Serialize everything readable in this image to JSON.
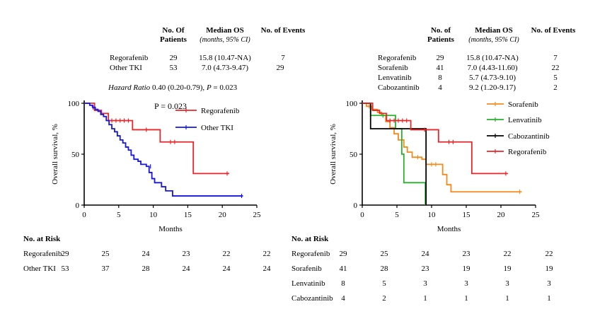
{
  "left": {
    "table": {
      "headers": {
        "patients": "No. Of",
        "patients2": "Patients",
        "median": "Median OS",
        "median_sub": "(months, 95% CI)",
        "events": "No. of Events"
      },
      "rows": [
        {
          "name": "Regorafenib",
          "n": "29",
          "median": "15.8 (10.47-NA)",
          "events": "7"
        },
        {
          "name": "Other TKI",
          "n": "53",
          "median": "7.0 (4.73-9.47)",
          "events": "29"
        }
      ]
    },
    "hr_italic": "Hazard Ratio",
    "hr_value": "0.40 (0.20-0.79),",
    "hr_p_italic": "P",
    "hr_p_value": "= 0.023",
    "p_text": "P = 0.023",
    "risk": {
      "title": "No. at Risk",
      "rows": [
        {
          "name": "Regorafenib",
          "values": [
            "29",
            "25",
            "24",
            "23",
            "22",
            "22"
          ]
        },
        {
          "name": "Other TKI",
          "values": [
            "53",
            "37",
            "28",
            "24",
            "24",
            "24"
          ]
        }
      ]
    }
  },
  "right": {
    "table": {
      "headers": {
        "patients": "No. of",
        "patients2": "Patients",
        "median": "Median OS",
        "median_sub": "(months, 95% CI)",
        "events": "No. of Events"
      },
      "rows": [
        {
          "name": "Regorafenib",
          "n": "29",
          "median": "15.8 (10.47-NA)",
          "events": "7"
        },
        {
          "name": "Sorafenib",
          "n": "41",
          "median": "7.0 (4.43-11.60)",
          "events": "22"
        },
        {
          "name": "Lenvatinib",
          "n": "8",
          "median": "5.7 (4.73-9.10)",
          "events": "5"
        },
        {
          "name": "Cabozantinib",
          "n": "4",
          "median": "9.2 (1.20-9.17)",
          "events": "2"
        }
      ]
    },
    "risk": {
      "title": "No. at Risk",
      "rows": [
        {
          "name": "Regorafenib",
          "values": [
            "29",
            "25",
            "24",
            "23",
            "22",
            "22"
          ]
        },
        {
          "name": "Sorafenib",
          "values": [
            "41",
            "28",
            "23",
            "19",
            "19",
            "19"
          ]
        },
        {
          "name": "Lenvatinib",
          "values": [
            "8",
            "5",
            "3",
            "3",
            "3",
            "3"
          ]
        },
        {
          "name": "Cabozantinib",
          "values": [
            "4",
            "2",
            "1",
            "1",
            "1",
            "1"
          ]
        }
      ]
    }
  },
  "chart_data": [
    {
      "type": "line",
      "title": "",
      "xlabel": "Months",
      "ylabel": "Overall survival, %",
      "xlim": [
        0,
        25
      ],
      "ylim": [
        0,
        100
      ],
      "xticks": [
        "0",
        "5",
        "10",
        "15",
        "20",
        "25"
      ],
      "yticks": [
        "0",
        "50",
        "100"
      ],
      "legend_position": "top-right",
      "series": [
        {
          "name": "Regorafenib",
          "color": "#e8262a",
          "steps": [
            [
              0,
              100
            ],
            [
              1.5,
              93
            ],
            [
              2.5,
              90
            ],
            [
              3.5,
              83
            ],
            [
              7,
              74
            ],
            [
              11,
              62
            ],
            [
              15.8,
              31
            ],
            [
              21,
              31
            ]
          ],
          "censors": [
            [
              4,
              83
            ],
            [
              4.6,
              83
            ],
            [
              5.2,
              83
            ],
            [
              5.8,
              83
            ],
            [
              6.4,
              83
            ],
            [
              9,
              74
            ],
            [
              12.5,
              62
            ],
            [
              13.1,
              62
            ],
            [
              20.7,
              31
            ]
          ]
        },
        {
          "name": "Other TKI",
          "color": "#1515e6",
          "steps": [
            [
              0,
              100
            ],
            [
              0.8,
              98
            ],
            [
              1.2,
              96
            ],
            [
              1.6,
              94
            ],
            [
              2,
              92
            ],
            [
              2.4,
              89
            ],
            [
              2.8,
              87
            ],
            [
              3.2,
              83
            ],
            [
              3.6,
              79
            ],
            [
              4,
              75
            ],
            [
              4.4,
              72
            ],
            [
              4.8,
              68
            ],
            [
              5.2,
              64
            ],
            [
              5.6,
              61
            ],
            [
              6,
              57
            ],
            [
              6.4,
              54
            ],
            [
              6.8,
              49
            ],
            [
              7.2,
              45
            ],
            [
              7.8,
              43
            ],
            [
              8.2,
              40
            ],
            [
              9,
              38
            ],
            [
              9.4,
              32
            ],
            [
              9.8,
              26
            ],
            [
              10.2,
              22
            ],
            [
              11.2,
              18
            ],
            [
              11.8,
              14
            ],
            [
              12.8,
              9
            ],
            [
              23,
              9
            ]
          ],
          "censors": [
            [
              1.3,
              96
            ],
            [
              9.6,
              38
            ],
            [
              22.8,
              9
            ]
          ]
        }
      ]
    },
    {
      "type": "line",
      "title": "",
      "xlabel": "Months",
      "ylabel": "Overall survival, %",
      "xlim": [
        0,
        25
      ],
      "ylim": [
        0,
        100
      ],
      "xticks": [
        "0",
        "5",
        "10",
        "15",
        "20",
        "25"
      ],
      "yticks": [
        "0",
        "50",
        "100"
      ],
      "legend_position": "top-right",
      "series": [
        {
          "name": "Sorafenib",
          "color": "#f28a1c",
          "steps": [
            [
              0,
              100
            ],
            [
              0.6,
              97
            ],
            [
              1.4,
              94
            ],
            [
              2.2,
              91
            ],
            [
              2.8,
              88
            ],
            [
              3.4,
              82
            ],
            [
              4,
              76
            ],
            [
              4.6,
              70
            ],
            [
              5.2,
              64
            ],
            [
              6,
              57
            ],
            [
              6.5,
              52
            ],
            [
              7.2,
              47
            ],
            [
              8.6,
              45
            ],
            [
              9.2,
              40
            ],
            [
              11.6,
              30
            ],
            [
              12.2,
              20
            ],
            [
              12.8,
              13
            ],
            [
              23,
              13
            ]
          ],
          "censors": [
            [
              1,
              97
            ],
            [
              3,
              88
            ],
            [
              8,
              47
            ],
            [
              10,
              40
            ],
            [
              10.6,
              40
            ],
            [
              22.7,
              13
            ]
          ]
        },
        {
          "name": "Lenvatinib",
          "color": "#27b12c",
          "steps": [
            [
              0,
              100
            ],
            [
              1.2,
              88
            ],
            [
              4.8,
              75
            ],
            [
              5.7,
              50
            ],
            [
              6,
              22
            ],
            [
              9.1,
              22
            ],
            [
              9.1,
              0
            ]
          ],
          "censors": [
            [
              3,
              88
            ],
            [
              3.5,
              88
            ]
          ]
        },
        {
          "name": "Cabozantinib",
          "color": "#000000",
          "steps": [
            [
              0,
              100
            ],
            [
              1.2,
              75
            ],
            [
              9.2,
              75
            ],
            [
              9.2,
              0
            ]
          ],
          "censors": []
        },
        {
          "name": "Regorafenib",
          "color": "#e8262a",
          "steps": [
            [
              0,
              100
            ],
            [
              1.5,
              93
            ],
            [
              2.5,
              90
            ],
            [
              3.5,
              83
            ],
            [
              7,
              74
            ],
            [
              11,
              62
            ],
            [
              15.8,
              31
            ],
            [
              21,
              31
            ]
          ],
          "censors": [
            [
              4,
              83
            ],
            [
              4.6,
              83
            ],
            [
              5.2,
              83
            ],
            [
              5.8,
              83
            ],
            [
              6.4,
              83
            ],
            [
              9,
              74
            ],
            [
              12.5,
              62
            ],
            [
              13.1,
              62
            ],
            [
              20.7,
              31
            ]
          ]
        }
      ]
    }
  ]
}
